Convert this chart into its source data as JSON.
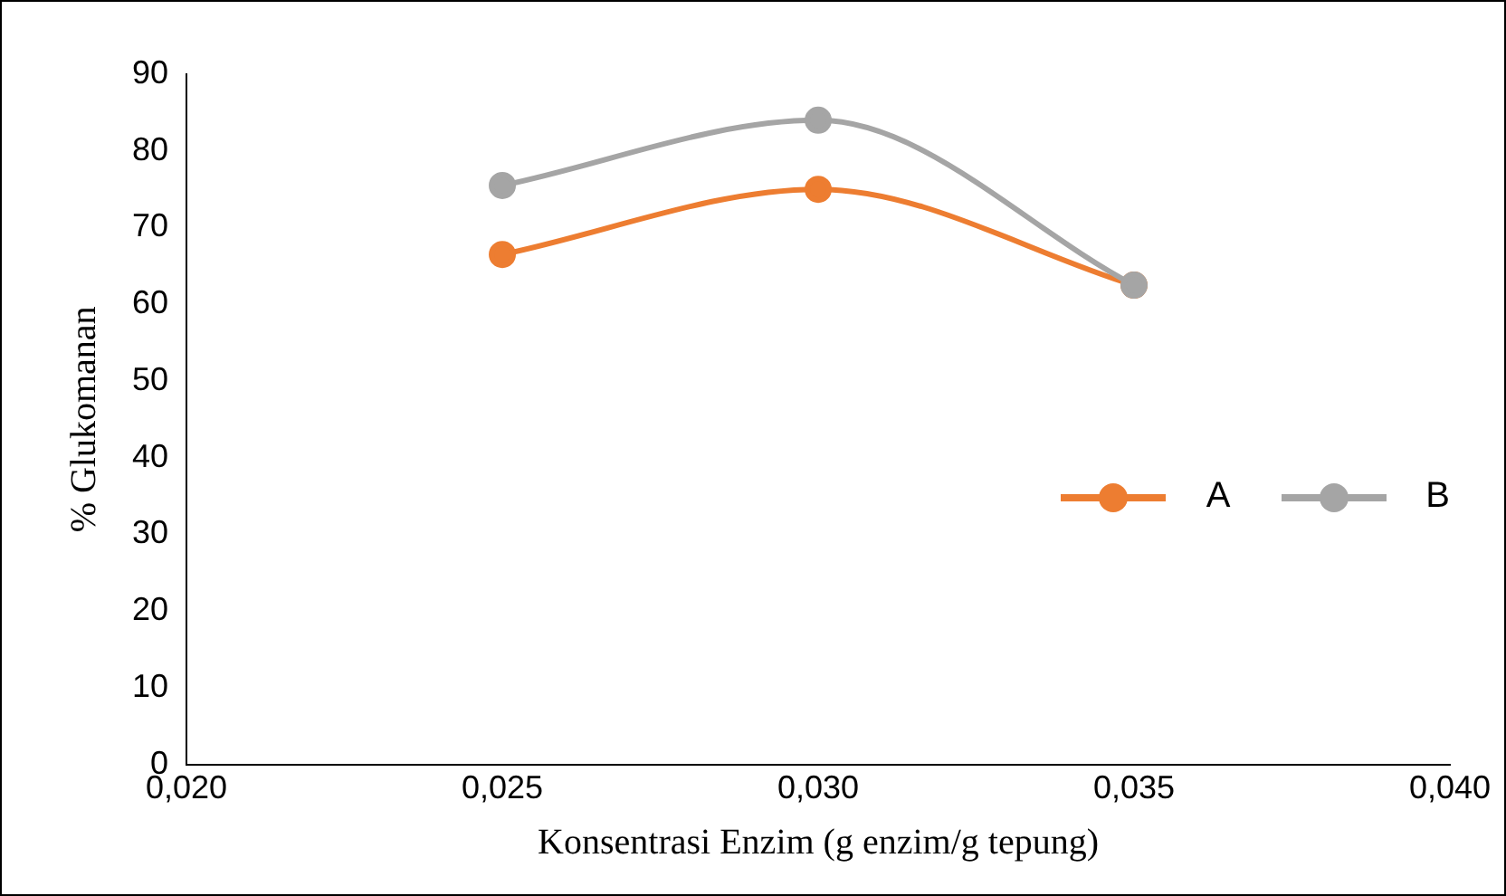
{
  "chart_data": {
    "type": "line",
    "xlabel": "Konsentrasi Enzim (g enzim/g tepung)",
    "ylabel": "% Glukomanan",
    "x": [
      0.025,
      0.03,
      0.035
    ],
    "series": [
      {
        "name": "A",
        "color": "#ed7d31",
        "values": [
          66.5,
          75,
          62.5
        ]
      },
      {
        "name": "B",
        "color": "#a5a5a5",
        "values": [
          75.5,
          84,
          62.5
        ]
      }
    ],
    "xlim": [
      0.02,
      0.04
    ],
    "xticks": [
      {
        "value": 0.02,
        "label": "0,020"
      },
      {
        "value": 0.025,
        "label": "0,025"
      },
      {
        "value": 0.03,
        "label": "0,030"
      },
      {
        "value": 0.035,
        "label": "0,035"
      },
      {
        "value": 0.04,
        "label": "0,040"
      }
    ],
    "ylim": [
      0,
      90
    ],
    "yticks": [
      0,
      10,
      20,
      30,
      40,
      50,
      60,
      70,
      80,
      90
    ],
    "grid": false,
    "legend": "right",
    "marker": "circle",
    "line_style": "solid"
  }
}
